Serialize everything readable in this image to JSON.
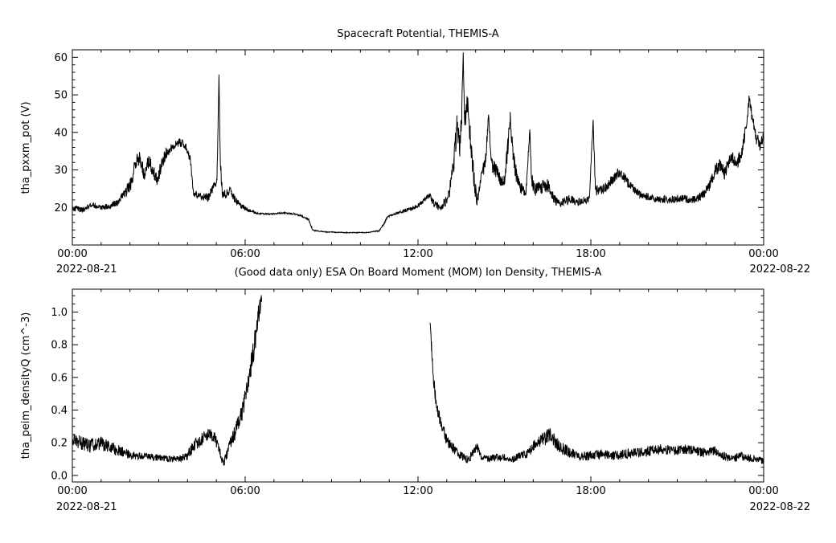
{
  "figure": {
    "background": "#ffffff",
    "line_color": "#000000"
  },
  "chart_data": [
    {
      "id": "spacecraft-potential",
      "type": "line",
      "title": "Spacecraft Potential, THEMIS-A",
      "ylabel": "tha_pxxm_pot (V)",
      "xlabel": "",
      "date_left": "2022-08-21",
      "date_right": "2022-08-22",
      "grid": false,
      "legend": "none",
      "xlim": [
        0,
        24
      ],
      "ylim": [
        10,
        62
      ],
      "xticks": [
        0,
        6,
        12,
        18,
        24
      ],
      "xtick_labels": [
        "00:00",
        "06:00",
        "12:00",
        "18:00",
        "00:00"
      ],
      "x_minor_step": 1,
      "yticks": [
        20,
        30,
        40,
        50,
        60
      ],
      "ytick_labels": [
        "20",
        "30",
        "40",
        "50",
        "60"
      ],
      "y_minor_step": 2,
      "line_color": "#000000",
      "segments": [
        [
          [
            0.0,
            20.0,
            0.8
          ],
          [
            0.35,
            19.3,
            0.7
          ],
          [
            0.7,
            20.8,
            0.8
          ],
          [
            1.0,
            19.8,
            0.7
          ],
          [
            1.3,
            20.3,
            0.8
          ],
          [
            1.6,
            21.5,
            1.0
          ],
          [
            1.85,
            24.0,
            1.5
          ],
          [
            2.05,
            26.5,
            1.8
          ],
          [
            2.2,
            32.0,
            2.0
          ],
          [
            2.35,
            33.5,
            1.8
          ],
          [
            2.5,
            28.5,
            2.0
          ],
          [
            2.65,
            32.5,
            2.0
          ],
          [
            2.8,
            30.0,
            2.0
          ],
          [
            2.95,
            27.0,
            1.8
          ],
          [
            3.1,
            31.5,
            1.8
          ],
          [
            3.25,
            34.5,
            1.5
          ],
          [
            3.45,
            36.0,
            1.2
          ],
          [
            3.7,
            37.3,
            1.0
          ],
          [
            3.95,
            36.5,
            1.2
          ],
          [
            4.1,
            33.0,
            1.5
          ],
          [
            4.2,
            23.8,
            1.0
          ],
          [
            4.45,
            23.0,
            1.0
          ],
          [
            4.7,
            22.5,
            1.2
          ],
          [
            4.9,
            25.5,
            1.2
          ],
          [
            5.02,
            27.0,
            1.0
          ],
          [
            5.06,
            42.0,
            1.0
          ],
          [
            5.09,
            55.5,
            0.5
          ],
          [
            5.13,
            34.0,
            2.0
          ],
          [
            5.2,
            24.0,
            1.5
          ],
          [
            5.35,
            23.5,
            1.5
          ],
          [
            5.5,
            24.5,
            1.3
          ],
          [
            5.65,
            22.0,
            1.0
          ],
          [
            5.85,
            20.5,
            0.8
          ],
          [
            6.1,
            19.3,
            0.5
          ],
          [
            6.4,
            18.4,
            0.25
          ],
          [
            6.9,
            18.2,
            0.2
          ],
          [
            7.3,
            18.6,
            0.2
          ],
          [
            7.7,
            18.3,
            0.2
          ],
          [
            8.0,
            17.6,
            0.25
          ],
          [
            8.2,
            16.8,
            0.3
          ],
          [
            8.35,
            13.9,
            0.15
          ],
          [
            8.8,
            13.5,
            0.12
          ],
          [
            9.5,
            13.3,
            0.1
          ],
          [
            10.2,
            13.3,
            0.1
          ],
          [
            10.65,
            13.8,
            0.15
          ],
          [
            10.8,
            15.5,
            0.3
          ],
          [
            10.95,
            17.6,
            0.3
          ],
          [
            11.2,
            18.3,
            0.35
          ],
          [
            11.5,
            19.0,
            0.4
          ],
          [
            11.8,
            19.8,
            0.5
          ],
          [
            12.05,
            20.8,
            0.7
          ],
          [
            12.25,
            22.5,
            0.9
          ],
          [
            12.4,
            23.3,
            0.8
          ],
          [
            12.55,
            21.0,
            0.9
          ],
          [
            12.75,
            20.0,
            1.0
          ],
          [
            12.95,
            21.5,
            1.3
          ],
          [
            13.1,
            24.5,
            1.8
          ],
          [
            13.25,
            32.0,
            3.0
          ],
          [
            13.35,
            42.0,
            3.5
          ],
          [
            13.45,
            36.0,
            3.0
          ],
          [
            13.52,
            45.0,
            3.0
          ],
          [
            13.57,
            61.5,
            0.8
          ],
          [
            13.62,
            42.0,
            4.0
          ],
          [
            13.72,
            48.0,
            3.0
          ],
          [
            13.82,
            38.0,
            3.0
          ],
          [
            13.95,
            27.0,
            2.5
          ],
          [
            14.05,
            21.5,
            1.5
          ],
          [
            14.2,
            28.0,
            2.0
          ],
          [
            14.35,
            33.0,
            2.0
          ],
          [
            14.45,
            44.5,
            1.0
          ],
          [
            14.55,
            32.0,
            2.5
          ],
          [
            14.7,
            30.0,
            2.0
          ],
          [
            14.85,
            27.5,
            1.8
          ],
          [
            15.0,
            27.0,
            1.8
          ],
          [
            15.12,
            36.0,
            2.5
          ],
          [
            15.2,
            44.0,
            1.5
          ],
          [
            15.3,
            34.0,
            3.0
          ],
          [
            15.45,
            27.0,
            2.0
          ],
          [
            15.6,
            25.0,
            1.8
          ],
          [
            15.75,
            24.0,
            1.5
          ],
          [
            15.88,
            40.5,
            0.8
          ],
          [
            15.95,
            27.0,
            2.0
          ],
          [
            16.1,
            24.5,
            1.8
          ],
          [
            16.3,
            25.5,
            1.8
          ],
          [
            16.5,
            26.0,
            1.8
          ],
          [
            16.7,
            22.5,
            1.3
          ],
          [
            16.9,
            21.0,
            1.2
          ],
          [
            17.1,
            21.5,
            1.2
          ],
          [
            17.3,
            22.3,
            1.3
          ],
          [
            17.5,
            21.3,
            1.0
          ],
          [
            17.75,
            21.8,
            1.0
          ],
          [
            17.95,
            22.5,
            1.2
          ],
          [
            18.08,
            43.0,
            0.8
          ],
          [
            18.16,
            24.5,
            1.5
          ],
          [
            18.35,
            24.5,
            1.3
          ],
          [
            18.55,
            25.5,
            1.3
          ],
          [
            18.75,
            27.5,
            1.4
          ],
          [
            18.95,
            29.3,
            1.4
          ],
          [
            19.15,
            28.0,
            1.4
          ],
          [
            19.35,
            26.0,
            1.3
          ],
          [
            19.6,
            24.0,
            1.1
          ],
          [
            19.9,
            23.0,
            1.0
          ],
          [
            20.3,
            22.3,
            1.0
          ],
          [
            20.7,
            22.0,
            1.0
          ],
          [
            21.1,
            22.5,
            1.0
          ],
          [
            21.5,
            22.0,
            1.0
          ],
          [
            21.85,
            23.0,
            1.2
          ],
          [
            22.1,
            25.5,
            1.4
          ],
          [
            22.3,
            29.5,
            1.8
          ],
          [
            22.5,
            31.5,
            1.8
          ],
          [
            22.65,
            29.0,
            1.8
          ],
          [
            22.85,
            33.5,
            1.8
          ],
          [
            23.05,
            31.5,
            1.8
          ],
          [
            23.25,
            34.5,
            1.8
          ],
          [
            23.42,
            43.0,
            2.0
          ],
          [
            23.5,
            49.5,
            1.0
          ],
          [
            23.6,
            43.5,
            2.0
          ],
          [
            23.75,
            38.0,
            2.0
          ],
          [
            23.9,
            36.5,
            1.8
          ],
          [
            24.0,
            40.0,
            1.0
          ]
        ]
      ]
    },
    {
      "id": "ion-density",
      "type": "line",
      "title": "(Good data only) ESA On Board Moment (MOM) Ion Density, THEMIS-A",
      "ylabel": "tha_peim_densityQ (cm^-3)",
      "xlabel": "",
      "date_left": "2022-08-21",
      "date_right": "2022-08-22",
      "grid": false,
      "legend": "none",
      "xlim": [
        0,
        24
      ],
      "ylim": [
        -0.04,
        1.14
      ],
      "xticks": [
        0,
        6,
        12,
        18,
        24
      ],
      "xtick_labels": [
        "00:00",
        "06:00",
        "12:00",
        "18:00",
        "00:00"
      ],
      "x_minor_step": 1,
      "yticks": [
        0,
        0.2,
        0.4,
        0.6,
        0.8,
        1.0
      ],
      "ytick_labels": [
        "0.0",
        "0.2",
        "0.4",
        "0.6",
        "0.8",
        "1.0"
      ],
      "y_minor_step": 0.05,
      "line_color": "#000000",
      "segments": [
        [
          [
            0.0,
            0.22,
            0.035
          ],
          [
            0.3,
            0.2,
            0.045
          ],
          [
            0.6,
            0.18,
            0.04
          ],
          [
            0.9,
            0.2,
            0.045
          ],
          [
            1.2,
            0.18,
            0.04
          ],
          [
            1.5,
            0.16,
            0.035
          ],
          [
            1.8,
            0.14,
            0.03
          ],
          [
            2.1,
            0.12,
            0.025
          ],
          [
            2.5,
            0.12,
            0.02
          ],
          [
            2.9,
            0.11,
            0.02
          ],
          [
            3.3,
            0.1,
            0.02
          ],
          [
            3.7,
            0.1,
            0.02
          ],
          [
            4.0,
            0.12,
            0.03
          ],
          [
            4.25,
            0.19,
            0.04
          ],
          [
            4.5,
            0.22,
            0.04
          ],
          [
            4.75,
            0.26,
            0.035
          ],
          [
            4.95,
            0.23,
            0.035
          ],
          [
            5.1,
            0.15,
            0.03
          ],
          [
            5.25,
            0.07,
            0.025
          ],
          [
            5.35,
            0.12,
            0.03
          ],
          [
            5.5,
            0.21,
            0.04
          ],
          [
            5.65,
            0.26,
            0.05
          ],
          [
            5.8,
            0.33,
            0.055
          ],
          [
            5.95,
            0.43,
            0.06
          ],
          [
            6.1,
            0.56,
            0.07
          ],
          [
            6.25,
            0.72,
            0.08
          ],
          [
            6.4,
            0.9,
            0.08
          ],
          [
            6.5,
            1.02,
            0.06
          ],
          [
            6.57,
            1.09,
            0.03
          ]
        ],
        [
          [
            12.42,
            0.94,
            0.01
          ],
          [
            12.47,
            0.8,
            0.04
          ],
          [
            12.53,
            0.62,
            0.05
          ],
          [
            12.6,
            0.48,
            0.05
          ],
          [
            12.7,
            0.38,
            0.045
          ],
          [
            12.82,
            0.3,
            0.04
          ],
          [
            12.95,
            0.24,
            0.04
          ],
          [
            13.1,
            0.19,
            0.035
          ],
          [
            13.3,
            0.15,
            0.03
          ],
          [
            13.5,
            0.12,
            0.03
          ],
          [
            13.7,
            0.1,
            0.028
          ],
          [
            13.9,
            0.13,
            0.035
          ],
          [
            14.05,
            0.17,
            0.03
          ],
          [
            14.2,
            0.12,
            0.025
          ],
          [
            14.45,
            0.1,
            0.022
          ],
          [
            14.7,
            0.11,
            0.022
          ],
          [
            15.0,
            0.11,
            0.022
          ],
          [
            15.3,
            0.1,
            0.022
          ],
          [
            15.6,
            0.12,
            0.028
          ],
          [
            15.85,
            0.14,
            0.03
          ],
          [
            16.05,
            0.19,
            0.04
          ],
          [
            16.25,
            0.21,
            0.04
          ],
          [
            16.45,
            0.23,
            0.045
          ],
          [
            16.6,
            0.26,
            0.05
          ],
          [
            16.75,
            0.21,
            0.04
          ],
          [
            16.95,
            0.17,
            0.04
          ],
          [
            17.2,
            0.15,
            0.035
          ],
          [
            17.45,
            0.13,
            0.03
          ],
          [
            17.7,
            0.12,
            0.03
          ],
          [
            18.0,
            0.12,
            0.03
          ],
          [
            18.4,
            0.13,
            0.03
          ],
          [
            18.8,
            0.12,
            0.03
          ],
          [
            19.2,
            0.13,
            0.03
          ],
          [
            19.6,
            0.14,
            0.03
          ],
          [
            20.0,
            0.15,
            0.032
          ],
          [
            20.4,
            0.16,
            0.032
          ],
          [
            20.8,
            0.15,
            0.03
          ],
          [
            21.2,
            0.16,
            0.032
          ],
          [
            21.6,
            0.15,
            0.03
          ],
          [
            21.95,
            0.14,
            0.03
          ],
          [
            22.3,
            0.15,
            0.03
          ],
          [
            22.6,
            0.12,
            0.025
          ],
          [
            22.9,
            0.1,
            0.022
          ],
          [
            23.2,
            0.12,
            0.028
          ],
          [
            23.5,
            0.11,
            0.025
          ],
          [
            23.8,
            0.1,
            0.022
          ],
          [
            24.0,
            0.09,
            0.02
          ]
        ]
      ]
    }
  ]
}
